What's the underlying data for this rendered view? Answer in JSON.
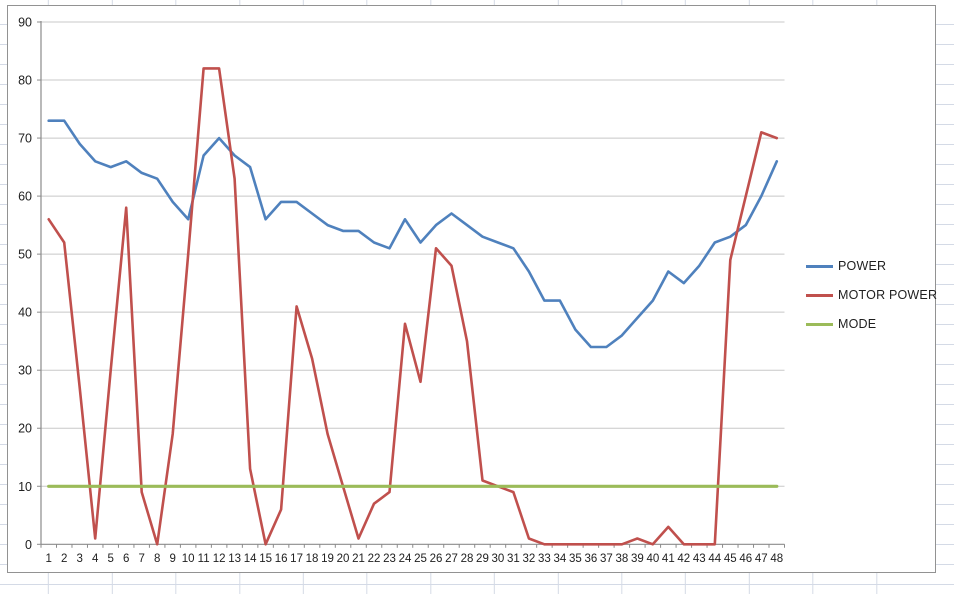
{
  "app": {
    "surface": "excel-worksheet-with-embedded-chart"
  },
  "chart_data": {
    "type": "line",
    "title": "",
    "xlabel": "",
    "ylabel": "",
    "categories": [
      1,
      2,
      3,
      4,
      5,
      6,
      7,
      8,
      9,
      10,
      11,
      12,
      13,
      14,
      15,
      16,
      17,
      18,
      19,
      20,
      21,
      22,
      23,
      24,
      25,
      26,
      27,
      28,
      29,
      30,
      31,
      32,
      33,
      34,
      35,
      36,
      37,
      38,
      39,
      40,
      41,
      42,
      43,
      44,
      45,
      46,
      47,
      48
    ],
    "series": [
      {
        "name": "POWER",
        "color": "#4F81BD",
        "values": [
          73,
          73,
          69,
          66,
          65,
          66,
          64,
          63,
          59,
          56,
          67,
          70,
          67,
          65,
          56,
          59,
          59,
          57,
          55,
          54,
          54,
          52,
          51,
          56,
          52,
          55,
          57,
          55,
          53,
          52,
          51,
          47,
          42,
          42,
          37,
          34,
          34,
          36,
          39,
          42,
          47,
          45,
          48,
          52,
          53,
          55,
          60,
          66
        ]
      },
      {
        "name": "MOTOR POWER",
        "color": "#C0504D",
        "values": [
          56,
          52,
          27,
          1,
          30,
          58,
          9,
          0,
          19,
          50,
          82,
          82,
          63,
          13,
          0,
          6,
          41,
          32,
          19,
          10,
          1,
          7,
          9,
          38,
          28,
          51,
          48,
          35,
          11,
          10,
          9,
          1,
          0,
          0,
          0,
          0,
          0,
          0,
          1,
          0,
          3,
          0,
          0,
          0,
          49,
          60,
          71,
          70
        ]
      },
      {
        "name": "MODE",
        "color": "#9BBB59",
        "values": [
          10,
          10,
          10,
          10,
          10,
          10,
          10,
          10,
          10,
          10,
          10,
          10,
          10,
          10,
          10,
          10,
          10,
          10,
          10,
          10,
          10,
          10,
          10,
          10,
          10,
          10,
          10,
          10,
          10,
          10,
          10,
          10,
          10,
          10,
          10,
          10,
          10,
          10,
          10,
          10,
          10,
          10,
          10,
          10,
          10,
          10,
          10,
          10
        ]
      }
    ],
    "ylim": [
      0,
      90
    ],
    "y_ticks": [
      0,
      10,
      20,
      30,
      40,
      50,
      60,
      70,
      80,
      90
    ],
    "grid": "horizontal",
    "legend_position": "right",
    "colors": {
      "gridline": "#c8c8c8",
      "axis": "#8b8b8b",
      "tick": "#8b8b8b",
      "label_text": "#212121",
      "chart_border": "#929292",
      "sheet_gridline": "#d4dae6"
    }
  },
  "legend": {
    "items": [
      {
        "label": "POWER"
      },
      {
        "label": "MOTOR POWER"
      },
      {
        "label": "MODE"
      }
    ]
  }
}
